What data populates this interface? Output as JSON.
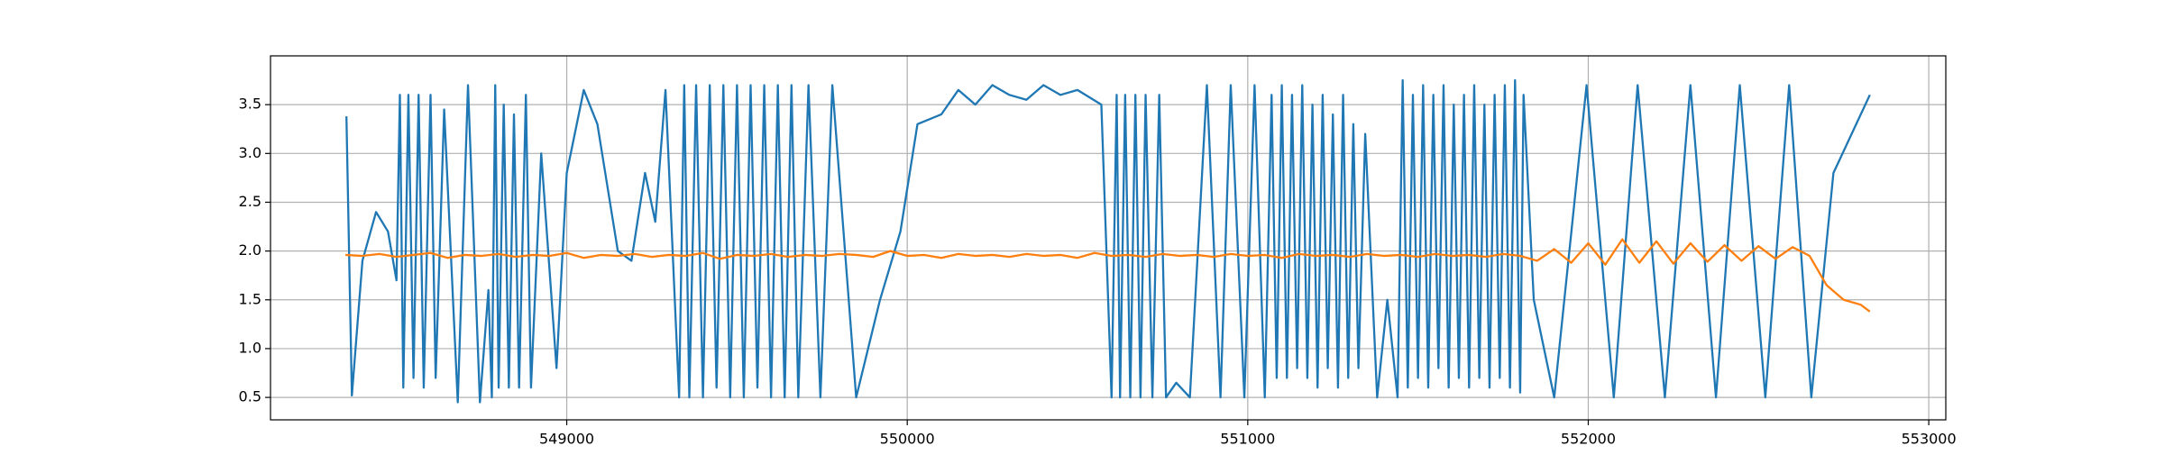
{
  "chart_data": {
    "type": "line",
    "xlim": [
      548130,
      553050
    ],
    "ylim": [
      0.27,
      4.0
    ],
    "xticks": [
      549000,
      550000,
      551000,
      552000,
      553000
    ],
    "yticks": [
      0.5,
      {
        "value": 1,
        "label": "1.0"
      },
      1.5,
      {
        "value": 2,
        "label": "2.0"
      },
      2.5,
      {
        "value": 3,
        "label": "3.0"
      },
      3.5
    ],
    "grid": true,
    "series": [
      {
        "color": "#1f77b4",
        "x": [
          548353,
          548369,
          548400,
          548440,
          548475,
          548500,
          548510,
          548520,
          548535,
          548550,
          548565,
          548580,
          548600,
          548615,
          548640,
          548680,
          548710,
          548745,
          548770,
          548780,
          548790,
          548800,
          548815,
          548830,
          548845,
          548860,
          548880,
          548895,
          548925,
          548970,
          549000,
          549050,
          549090,
          549150,
          549190,
          549230,
          549260,
          549290,
          549330,
          549345,
          549360,
          549380,
          549400,
          549420,
          549440,
          549460,
          549480,
          549500,
          549520,
          549540,
          549560,
          549580,
          549600,
          549620,
          549640,
          549660,
          549680,
          549710,
          549745,
          549780,
          549850,
          549920,
          549980,
          550030,
          550100,
          550150,
          550200,
          550250,
          550300,
          550350,
          550400,
          550450,
          550500,
          550570,
          550600,
          550615,
          550625,
          550640,
          550655,
          550670,
          550685,
          550700,
          550720,
          550740,
          550760,
          550790,
          550830,
          550880,
          550920,
          550950,
          550990,
          551020,
          551050,
          551070,
          551085,
          551100,
          551115,
          551130,
          551145,
          551160,
          551175,
          551190,
          551205,
          551220,
          551235,
          551250,
          551265,
          551280,
          551295,
          551310,
          551325,
          551345,
          551380,
          551410,
          551440,
          551455,
          551470,
          551485,
          551500,
          551515,
          551530,
          551545,
          551560,
          551575,
          551590,
          551605,
          551620,
          551635,
          551650,
          551665,
          551680,
          551695,
          551710,
          551725,
          551740,
          551755,
          551770,
          551785,
          551800,
          551810,
          551840,
          551900,
          551995,
          552075,
          552145,
          552225,
          552300,
          552375,
          552445,
          552520,
          552590,
          552655,
          552720,
          552827
        ],
        "values": [
          3.38,
          0.52,
          1.9,
          2.4,
          2.2,
          1.7,
          3.6,
          0.6,
          3.6,
          0.7,
          3.6,
          0.6,
          3.6,
          0.7,
          3.45,
          0.45,
          3.7,
          0.45,
          1.6,
          0.5,
          3.7,
          0.6,
          3.5,
          0.6,
          3.4,
          0.6,
          3.6,
          0.6,
          3.0,
          0.8,
          2.8,
          3.65,
          3.3,
          2.0,
          1.9,
          2.8,
          2.3,
          3.65,
          0.5,
          3.7,
          0.5,
          3.7,
          0.5,
          3.7,
          0.6,
          3.7,
          0.5,
          3.7,
          0.5,
          3.7,
          0.6,
          3.7,
          0.5,
          3.7,
          0.5,
          3.7,
          0.5,
          3.7,
          0.5,
          3.7,
          0.5,
          1.5,
          2.2,
          3.3,
          3.4,
          3.65,
          3.5,
          3.7,
          3.6,
          3.55,
          3.7,
          3.6,
          3.65,
          3.5,
          0.5,
          3.6,
          0.5,
          3.6,
          0.5,
          3.6,
          0.5,
          3.6,
          0.5,
          3.6,
          0.5,
          0.65,
          0.5,
          3.7,
          0.5,
          3.7,
          0.5,
          3.7,
          0.5,
          3.6,
          0.7,
          3.7,
          0.7,
          3.6,
          0.8,
          3.7,
          0.7,
          3.5,
          0.6,
          3.6,
          0.8,
          3.4,
          0.6,
          3.6,
          0.7,
          3.3,
          0.8,
          3.2,
          0.5,
          1.5,
          0.5,
          3.75,
          0.6,
          3.6,
          0.7,
          3.7,
          0.6,
          3.6,
          0.8,
          3.7,
          0.6,
          3.5,
          0.7,
          3.6,
          0.6,
          3.7,
          0.7,
          3.5,
          0.6,
          3.6,
          0.7,
          3.7,
          0.6,
          3.75,
          0.55,
          3.6,
          1.5,
          0.5,
          3.7,
          0.5,
          3.7,
          0.5,
          3.7,
          0.5,
          3.7,
          0.5,
          3.7,
          0.5,
          2.8,
          3.6
        ]
      },
      {
        "color": "#ff7f0e",
        "x": [
          548350,
          548400,
          548450,
          548500,
          548550,
          548600,
          548650,
          548700,
          548750,
          548800,
          548850,
          548900,
          548950,
          549000,
          549050,
          549100,
          549150,
          549200,
          549250,
          549300,
          549350,
          549400,
          549450,
          549500,
          549550,
          549600,
          549650,
          549700,
          549750,
          549800,
          549850,
          549900,
          549950,
          550000,
          550050,
          550100,
          550150,
          550200,
          550250,
          550300,
          550350,
          550400,
          550450,
          550500,
          550550,
          550600,
          550650,
          550700,
          550750,
          550800,
          550850,
          550900,
          550950,
          551000,
          551050,
          551100,
          551150,
          551200,
          551250,
          551300,
          551350,
          551400,
          551450,
          551500,
          551550,
          551600,
          551650,
          551700,
          551750,
          551800,
          551850,
          551900,
          551950,
          552000,
          552050,
          552100,
          552150,
          552200,
          552250,
          552300,
          552350,
          552400,
          552450,
          552500,
          552550,
          552600,
          552650,
          552700,
          552750,
          552800,
          552827
        ],
        "values": [
          1.96,
          1.95,
          1.97,
          1.94,
          1.96,
          1.98,
          1.93,
          1.96,
          1.95,
          1.97,
          1.94,
          1.96,
          1.95,
          1.98,
          1.93,
          1.96,
          1.95,
          1.97,
          1.94,
          1.96,
          1.95,
          1.98,
          1.92,
          1.96,
          1.95,
          1.97,
          1.94,
          1.96,
          1.95,
          1.97,
          1.96,
          1.94,
          2.0,
          1.95,
          1.96,
          1.93,
          1.97,
          1.95,
          1.96,
          1.94,
          1.97,
          1.95,
          1.96,
          1.93,
          1.98,
          1.95,
          1.96,
          1.94,
          1.97,
          1.95,
          1.96,
          1.94,
          1.97,
          1.95,
          1.96,
          1.93,
          1.97,
          1.95,
          1.96,
          1.94,
          1.97,
          1.95,
          1.96,
          1.94,
          1.97,
          1.95,
          1.96,
          1.94,
          1.97,
          1.95,
          1.9,
          2.02,
          1.88,
          2.08,
          1.86,
          2.12,
          1.88,
          2.1,
          1.87,
          2.08,
          1.89,
          2.06,
          1.9,
          2.05,
          1.92,
          2.04,
          1.95,
          1.65,
          1.5,
          1.45,
          1.38
        ]
      }
    ]
  }
}
